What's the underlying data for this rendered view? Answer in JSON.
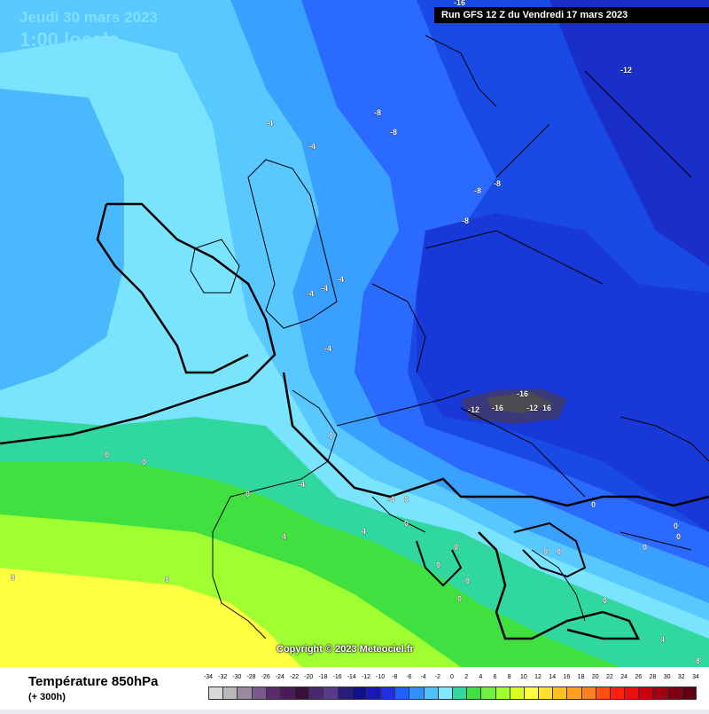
{
  "header": {
    "date": "Jeudi 30 mars 2023",
    "time": "1:00 locale",
    "run": "Run GFS 12 Z du Vendredi 17 mars 2023"
  },
  "copyright": "Copyright © 2023 Meteociel.fr",
  "legend": {
    "title": "Température 850hPa",
    "subtitle": "(+ 300h)",
    "scale_values": [
      -34,
      -32,
      -30,
      -28,
      -26,
      -24,
      -22,
      -20,
      -18,
      -16,
      -14,
      -12,
      -10,
      -8,
      -6,
      -4,
      -2,
      0,
      2,
      4,
      6,
      8,
      10,
      12,
      14,
      16,
      18,
      20,
      22,
      24,
      26,
      28,
      30,
      32,
      34
    ],
    "scale_colors": [
      "#d8d8d8",
      "#b8b8b8",
      "#9a8aa0",
      "#7a5a8a",
      "#5a2a6a",
      "#4a1a5a",
      "#3a103a",
      "#482870",
      "#5a3a8a",
      "#2a1a7a",
      "#10108a",
      "#1818b8",
      "#2030e0",
      "#2060ff",
      "#3090ff",
      "#50c0ff",
      "#80e8ff",
      "#30d8a0",
      "#40e040",
      "#70f040",
      "#a0ff30",
      "#d8ff20",
      "#ffff40",
      "#ffe030",
      "#ffc020",
      "#ffa020",
      "#ff8020",
      "#ff5010",
      "#ff2010",
      "#e81010",
      "#c80010",
      "#a00010",
      "#800010",
      "#600010"
    ]
  },
  "map_labels": [
    {
      "text": "-16",
      "id": "north"
    },
    {
      "text": "-12",
      "id": "baltic"
    },
    {
      "text": "-8",
      "id": "scot-east"
    },
    {
      "text": "-8",
      "id": "north-sea"
    },
    {
      "text": "-8",
      "id": "denmark-1"
    },
    {
      "text": "-8",
      "id": "denmark-2"
    },
    {
      "text": "-8",
      "id": "dutch"
    },
    {
      "text": "-4",
      "id": "scotland"
    },
    {
      "text": "-4",
      "id": "england-n"
    },
    {
      "text": "-4",
      "id": "wales-1"
    },
    {
      "text": "-4",
      "id": "wales-2"
    },
    {
      "text": "-4",
      "id": "midlands"
    },
    {
      "text": "-4",
      "id": "channel"
    },
    {
      "text": "0",
      "id": "brittany"
    },
    {
      "text": "0",
      "id": "atlantic-1"
    },
    {
      "text": "0",
      "id": "atlantic-2"
    },
    {
      "text": "0",
      "id": "galicia"
    },
    {
      "text": "-4",
      "id": "pyrenees"
    },
    {
      "text": "-4",
      "id": "gulf-lion"
    },
    {
      "text": "0",
      "id": "gulf-lion-2"
    },
    {
      "text": "4",
      "id": "spain-n"
    },
    {
      "text": "4",
      "id": "valencia"
    },
    {
      "text": "8",
      "id": "portugal"
    },
    {
      "text": "8",
      "id": "spain-s"
    },
    {
      "text": "-16",
      "id": "alps-1"
    },
    {
      "text": "-12",
      "id": "alps-2"
    },
    {
      "text": "-16",
      "id": "alps-3"
    },
    {
      "text": "-12",
      "id": "alps-4"
    },
    {
      "text": "16",
      "id": "alps-5"
    },
    {
      "text": "0",
      "id": "tyrrhenian"
    },
    {
      "text": "0",
      "id": "sardinia"
    },
    {
      "text": "0",
      "id": "italy-c"
    },
    {
      "text": "0",
      "id": "italy-s"
    },
    {
      "text": "0",
      "id": "ionian"
    },
    {
      "text": "0",
      "id": "sicily"
    },
    {
      "text": "0",
      "id": "adriatic"
    },
    {
      "text": "0",
      "id": "balkans-1"
    },
    {
      "text": "0",
      "id": "balkans-2"
    },
    {
      "text": "0",
      "id": "greece"
    },
    {
      "text": "0",
      "id": "aegean"
    },
    {
      "text": "4",
      "id": "africa"
    },
    {
      "text": "0",
      "id": "baleares"
    },
    {
      "text": "8",
      "id": "se-corner"
    }
  ]
}
